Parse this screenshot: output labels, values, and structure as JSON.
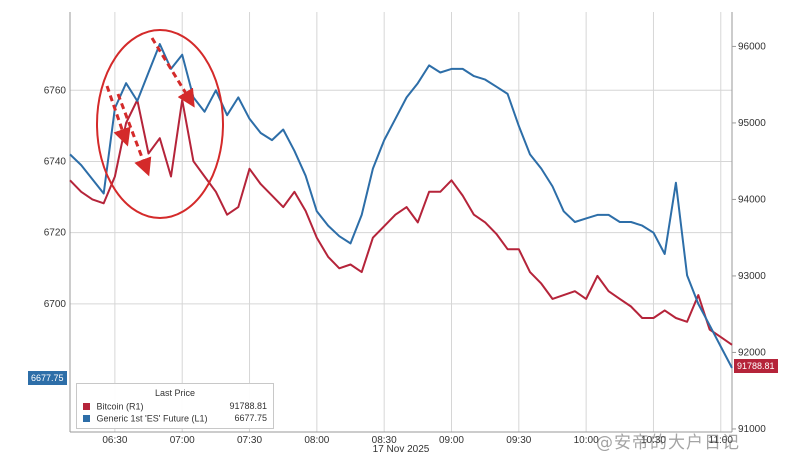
{
  "chart_data": {
    "type": "line",
    "date_label": "17 Nov 2025",
    "x_ticks": [
      "06:30",
      "07:00",
      "07:30",
      "08:00",
      "08:30",
      "09:00",
      "09:30",
      "10:00",
      "10:30",
      "11:00"
    ],
    "x_range": [
      "06:10",
      "11:05"
    ],
    "y_left": {
      "ticks": [
        6700,
        6720,
        6740,
        6760
      ],
      "range": [
        6664,
        6782
      ]
    },
    "y_right": {
      "ticks": [
        91000,
        92000,
        93000,
        94000,
        95000,
        96000
      ],
      "range": [
        90960,
        96450
      ]
    },
    "grid": true,
    "legend_placement": "bottom-left",
    "legend_title": "Last Price",
    "series": [
      {
        "name": "Bitcoin  (R1)",
        "axis": "right",
        "color": "#b5243a",
        "last": "91788.81",
        "x": [
          "06:10",
          "06:15",
          "06:20",
          "06:25",
          "06:30",
          "06:35",
          "06:40",
          "06:45",
          "06:50",
          "06:55",
          "07:00",
          "07:05",
          "07:10",
          "07:15",
          "07:20",
          "07:25",
          "07:30",
          "07:35",
          "07:40",
          "07:45",
          "07:50",
          "07:55",
          "08:00",
          "08:05",
          "08:10",
          "08:15",
          "08:20",
          "08:25",
          "08:30",
          "08:35",
          "08:40",
          "08:45",
          "08:50",
          "08:55",
          "09:00",
          "09:05",
          "09:10",
          "09:15",
          "09:20",
          "09:25",
          "09:30",
          "09:35",
          "09:40",
          "09:45",
          "09:50",
          "09:55",
          "10:00",
          "10:05",
          "10:10",
          "10:15",
          "10:20",
          "10:25",
          "10:30",
          "10:35",
          "10:40",
          "10:45",
          "10:50",
          "10:55",
          "11:00",
          "11:05"
        ],
        "y": [
          94250,
          94100,
          94000,
          93950,
          94300,
          95000,
          95300,
          94600,
          94800,
          94300,
          95300,
          94500,
          94300,
          94100,
          93800,
          93900,
          94400,
          94200,
          94050,
          93900,
          94100,
          93850,
          93500,
          93250,
          93100,
          93150,
          93050,
          93500,
          93650,
          93800,
          93900,
          93700,
          94100,
          94100,
          94250,
          94050,
          93800,
          93700,
          93550,
          93350,
          93350,
          93050,
          92900,
          92700,
          92750,
          92800,
          92700,
          93000,
          92800,
          92700,
          92600,
          92450,
          92450,
          92550,
          92450,
          92400,
          92750,
          92300,
          92200,
          92100
        ]
      },
      {
        "name": "Generic 1st 'ES' Future  (L1)",
        "axis": "left",
        "color": "#2d6ea8",
        "last": "6677.75",
        "x": [
          "06:10",
          "06:15",
          "06:20",
          "06:25",
          "06:30",
          "06:35",
          "06:40",
          "06:45",
          "06:50",
          "06:55",
          "07:00",
          "07:05",
          "07:10",
          "07:15",
          "07:20",
          "07:25",
          "07:30",
          "07:35",
          "07:40",
          "07:45",
          "07:50",
          "07:55",
          "08:00",
          "08:05",
          "08:10",
          "08:15",
          "08:20",
          "08:25",
          "08:30",
          "08:35",
          "08:40",
          "08:45",
          "08:50",
          "08:55",
          "09:00",
          "09:05",
          "09:10",
          "09:15",
          "09:20",
          "09:25",
          "09:30",
          "09:35",
          "09:40",
          "09:45",
          "09:50",
          "09:55",
          "10:00",
          "10:05",
          "10:10",
          "10:15",
          "10:20",
          "10:25",
          "10:30",
          "10:35",
          "10:40",
          "10:45",
          "10:50",
          "10:55",
          "11:00",
          "11:05"
        ],
        "y": [
          6742,
          6739,
          6735,
          6731,
          6755,
          6762,
          6757,
          6765,
          6773,
          6766,
          6770,
          6758,
          6754,
          6760,
          6753,
          6758,
          6752,
          6748,
          6746,
          6749,
          6743,
          6736,
          6726,
          6722,
          6719,
          6717,
          6725,
          6738,
          6746,
          6752,
          6758,
          6762,
          6767,
          6765,
          6766,
          6766,
          6764,
          6763,
          6761,
          6759,
          6750,
          6742,
          6738,
          6733,
          6726,
          6723,
          6724,
          6725,
          6725,
          6723,
          6723,
          6722,
          6720,
          6714,
          6734,
          6708,
          6700,
          6694,
          6688,
          6682
        ]
      }
    ]
  },
  "flags": {
    "left": {
      "value": "6677.75",
      "color": "#2d6ea8"
    },
    "right": {
      "value": "91788.81",
      "color": "#b5243a"
    }
  },
  "watermark": "@安帝的大户日记"
}
